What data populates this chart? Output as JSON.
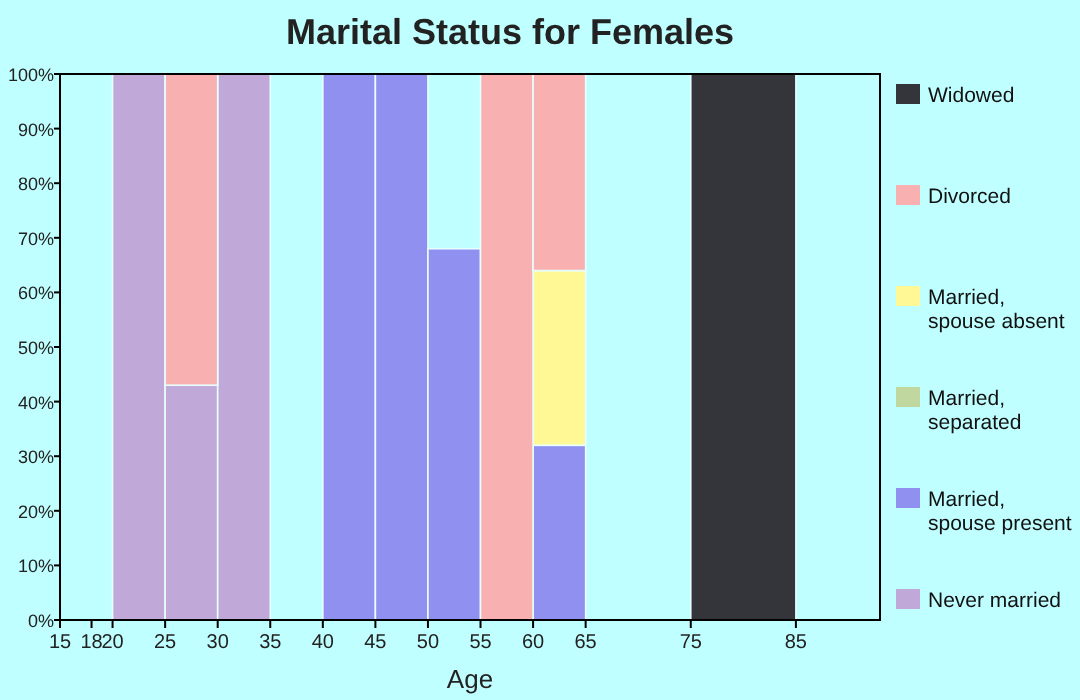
{
  "chart_data": {
    "type": "bar",
    "title": "Marital Status for Females",
    "xlabel": "Age",
    "stacked": true,
    "legend": "right",
    "grid": false,
    "x": [
      22.5,
      27.5,
      32.5,
      37.5,
      42.5,
      47.5,
      52.5,
      57.5,
      62.5,
      70,
      80
    ],
    "xlim": [
      15,
      93
    ],
    "xticks": [
      15,
      18,
      20,
      25,
      30,
      35,
      40,
      45,
      50,
      55,
      60,
      65,
      75,
      85
    ],
    "ylim": [
      0,
      100
    ],
    "yticks": [
      {
        "value": 0,
        "label": "0%"
      },
      {
        "value": 10,
        "label": "10%"
      },
      {
        "value": 20,
        "label": "20%"
      },
      {
        "value": 30,
        "label": "30%"
      },
      {
        "value": 40,
        "label": "40%"
      },
      {
        "value": 50,
        "label": "50%"
      },
      {
        "value": 60,
        "label": "60%"
      },
      {
        "value": 70,
        "label": "70%"
      },
      {
        "value": 80,
        "label": "80%"
      },
      {
        "value": 90,
        "label": "90%"
      },
      {
        "value": 100,
        "label": "100%"
      }
    ],
    "series": [
      {
        "name": "Never married",
        "color": "#c0a8d8",
        "values": [
          100,
          43,
          100,
          0,
          0,
          0,
          0,
          0,
          0,
          0,
          0
        ]
      },
      {
        "name": "Married, spouse present",
        "color": "#9090f0",
        "values": [
          0,
          0,
          0,
          0,
          100,
          100,
          68,
          0,
          32,
          0,
          0
        ]
      },
      {
        "name": "Married, separated",
        "color": "#c0d8a0",
        "values": [
          0,
          0,
          0,
          0,
          0,
          0,
          0,
          0,
          0,
          0,
          0
        ]
      },
      {
        "name": "Married, spouse absent",
        "color": "#fff894",
        "values": [
          0,
          0,
          0,
          0,
          0,
          0,
          0,
          0,
          32,
          0,
          0
        ]
      },
      {
        "name": "Divorced",
        "color": "#f8b0b0",
        "values": [
          0,
          57,
          0,
          0,
          0,
          0,
          0,
          100,
          36,
          0,
          0
        ]
      },
      {
        "name": "Widowed",
        "color": "#34353b",
        "values": [
          0,
          0,
          0,
          0,
          0,
          0,
          0,
          0,
          0,
          0,
          100
        ]
      }
    ]
  }
}
